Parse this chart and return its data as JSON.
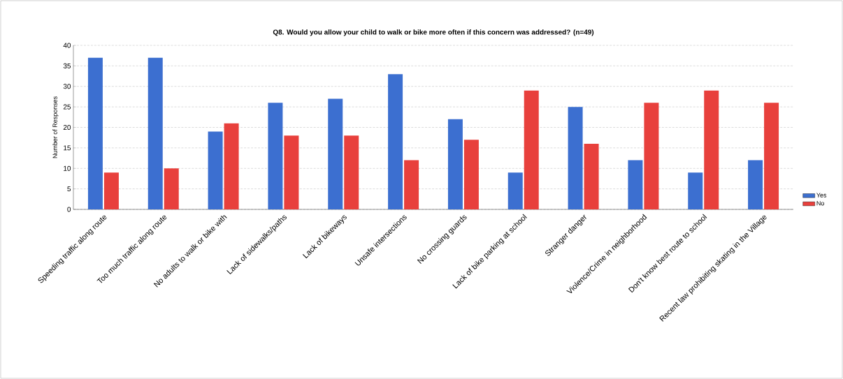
{
  "chart_data": {
    "type": "bar",
    "title": "Q8. Would you allow your child to walk or bike more often if this concern was addressed? (n=49)",
    "ylabel": "Number of Responses",
    "categories": [
      "Speeding traffic along route",
      "Too much traffic along route",
      "No adults to walk or bike with",
      "Lack of sidewalks/paths",
      "Lack of bikeways",
      "Unsafe intersections",
      "No crossing guards",
      "Lack of bike parking at school",
      "Stranger danger",
      "Violence/Crime in neighborhood",
      "Don't know best route to school",
      "Recent law prohibiting skating in the Village"
    ],
    "series": [
      {
        "name": "Yes",
        "color": "#3c6fd0",
        "values": [
          37,
          37,
          19,
          26,
          27,
          33,
          22,
          9,
          25,
          12,
          9,
          12
        ]
      },
      {
        "name": "No",
        "color": "#e8403c",
        "values": [
          9,
          10,
          21,
          18,
          18,
          12,
          17,
          29,
          16,
          26,
          29,
          26
        ]
      }
    ],
    "ylim": [
      0,
      40
    ],
    "yticks": [
      0,
      5,
      10,
      15,
      20,
      25,
      30,
      35,
      40
    ],
    "grid": "y",
    "legend": "right"
  }
}
